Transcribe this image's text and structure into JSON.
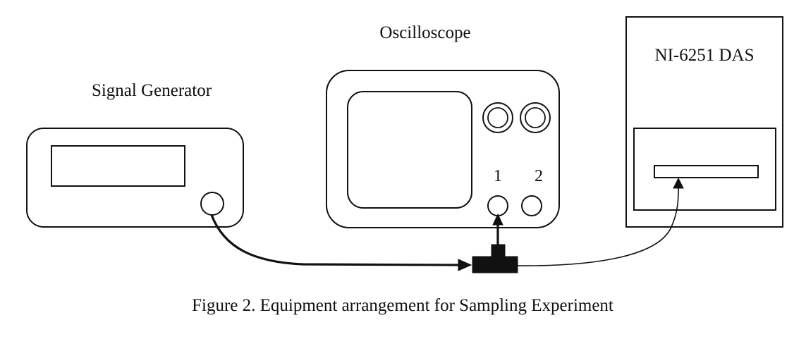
{
  "figure": {
    "caption": "Figure 2. Equipment arrangement for Sampling Experiment"
  },
  "signal_generator": {
    "label": "Signal Generator"
  },
  "oscilloscope": {
    "label": "Oscilloscope",
    "channels": [
      {
        "label": "1"
      },
      {
        "label": "2"
      }
    ]
  },
  "das": {
    "label": "NI-6251 DAS"
  }
}
